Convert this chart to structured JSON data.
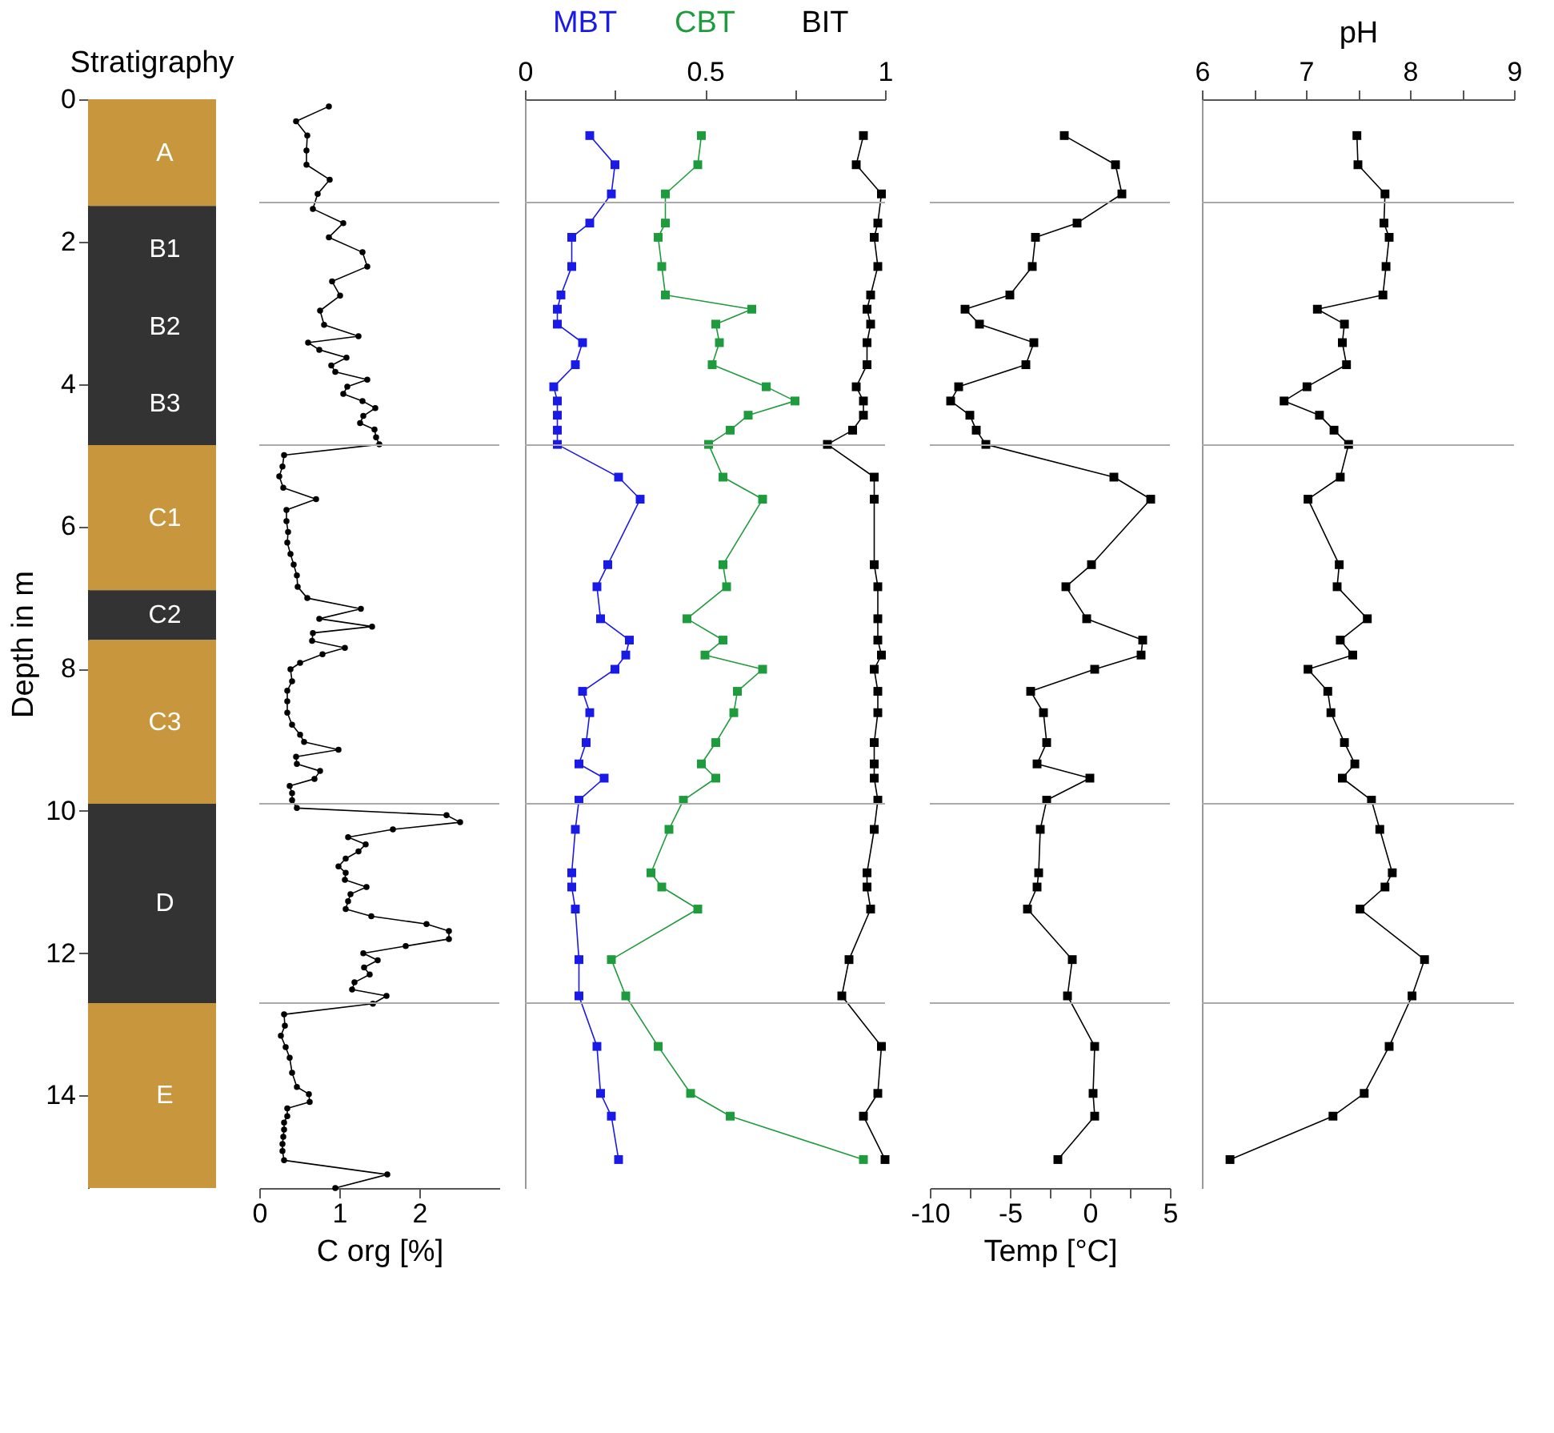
{
  "chart_data": [
    {
      "type": "bar",
      "stacked": true,
      "title": "Stratigraphy",
      "ylabel": "Depth in m",
      "categories": [
        null
      ],
      "ylim": [
        15.3,
        0
      ],
      "yticks": [
        0,
        2,
        4,
        6,
        8,
        10,
        12,
        14
      ],
      "tick_labels": "y",
      "data_labels": false,
      "series": [
        {
          "name": "A",
          "color": "#c8963c",
          "values": [
            1.5
          ]
        },
        {
          "name": "B1",
          "color": "#333333",
          "values": [
            1.2
          ]
        },
        {
          "name": "B2",
          "color": "#333333",
          "values": [
            1.0
          ]
        },
        {
          "name": "B3",
          "color": "#333333",
          "values": [
            1.16
          ]
        },
        {
          "name": "C1",
          "color": "#c8963c",
          "values": [
            2.04
          ]
        },
        {
          "name": "C2",
          "color": "#333333",
          "values": [
            0.7
          ]
        },
        {
          "name": "C3",
          "color": "#c8963c",
          "values": [
            2.3
          ]
        },
        {
          "name": "D",
          "color": "#333333",
          "values": [
            2.8
          ]
        },
        {
          "name": "E",
          "color": "#c8963c",
          "values": [
            2.6
          ]
        }
      ]
    },
    {
      "type": "line",
      "xlabel": "C org [%]",
      "xlim": [
        0,
        3
      ],
      "xticks": [
        0,
        1,
        2
      ],
      "ylim": [
        15.3,
        0
      ],
      "tick_labels": "x",
      "marker": "circle",
      "ref_lines": [
        {
          "axis": "y",
          "value": 1.45,
          "color": "#aaaaaa"
        },
        {
          "axis": "y",
          "value": 4.86,
          "color": "#aaaaaa"
        },
        {
          "axis": "y",
          "value": 9.9,
          "color": "#aaaaaa"
        },
        {
          "axis": "y",
          "value": 12.7,
          "color": "#aaaaaa"
        }
      ],
      "series": [
        {
          "color": "#000000",
          "x": [
            0.87,
            0.46,
            0.6,
            0.59,
            0.59,
            0.88,
            0.73,
            0.67,
            1.05,
            0.87,
            1.29,
            1.35,
            0.91,
            1.01,
            0.76,
            0.81,
            1.24,
            0.61,
            0.75,
            1.09,
            0.9,
            0.95,
            1.35,
            1.1,
            1.05,
            1.29,
            1.45,
            1.3,
            1.26,
            1.44,
            1.46,
            1.5,
            0.31,
            0.29,
            0.25,
            0.3,
            0.71,
            0.34,
            0.34,
            0.36,
            0.35,
            0.39,
            0.43,
            0.47,
            0.48,
            0.6,
            1.27,
            0.75,
            1.41,
            0.67,
            0.66,
            1.07,
            0.79,
            0.51,
            0.39,
            0.41,
            0.35,
            0.35,
            0.35,
            0.41,
            0.51,
            0.56,
            0.99,
            0.46,
            0.47,
            0.76,
            0.69,
            0.38,
            0.41,
            0.41,
            0.47,
            2.34,
            2.51,
            1.67,
            1.11,
            1.33,
            1.24,
            1.08,
            0.99,
            1.08,
            1.07,
            1.34,
            1.14,
            1.11,
            1.08,
            1.4,
            2.09,
            2.37,
            2.37,
            1.83,
            1.3,
            1.48,
            1.31,
            1.38,
            1.19,
            1.16,
            1.59,
            1.42,
            0.31,
            0.32,
            0.27,
            0.33,
            0.38,
            0.41,
            0.47,
            0.62,
            0.63,
            0.35,
            0.35,
            0.31,
            0.31,
            0.3,
            0.29,
            0.29,
            0.31,
            1.6,
            0.95
          ],
          "values": [
            0.1,
            0.31,
            0.51,
            0.72,
            0.92,
            1.13,
            1.33,
            1.54,
            1.74,
            1.94,
            2.15,
            2.35,
            2.56,
            2.76,
            2.97,
            3.17,
            3.33,
            3.42,
            3.52,
            3.63,
            3.74,
            3.83,
            3.94,
            4.04,
            4.14,
            4.24,
            4.34,
            4.45,
            4.55,
            4.64,
            4.75,
            4.85,
            5.0,
            5.16,
            5.3,
            5.46,
            5.62,
            5.77,
            5.93,
            6.08,
            6.23,
            6.39,
            6.54,
            6.69,
            6.85,
            7.01,
            7.16,
            7.3,
            7.41,
            7.5,
            7.61,
            7.71,
            7.8,
            7.92,
            8.01,
            8.18,
            8.31,
            8.46,
            8.62,
            8.79,
            8.93,
            9.03,
            9.14,
            9.24,
            9.34,
            9.44,
            9.55,
            9.65,
            9.75,
            9.85,
            9.96,
            10.06,
            10.16,
            10.26,
            10.37,
            10.47,
            10.57,
            10.67,
            10.78,
            10.87,
            10.97,
            11.07,
            11.17,
            11.27,
            11.38,
            11.48,
            11.59,
            11.69,
            11.8,
            11.9,
            12.0,
            12.1,
            12.2,
            12.3,
            12.41,
            12.51,
            12.6,
            12.71,
            12.86,
            13.02,
            13.16,
            13.32,
            13.47,
            13.68,
            13.88,
            13.98,
            14.09,
            14.18,
            14.29,
            14.38,
            14.48,
            14.58,
            14.68,
            14.78,
            14.91,
            15.11,
            15.3
          ]
        }
      ]
    },
    {
      "type": "line",
      "xlim": [
        0,
        1
      ],
      "xticks": [
        0,
        {
          "value": 0.25,
          "label": null
        },
        0.5,
        {
          "value": 0.75,
          "label": null
        },
        1
      ],
      "ylim": [
        15.3,
        0
      ],
      "tick_labels": "x",
      "marker": "square",
      "ref_lines": [
        {
          "axis": "y",
          "value": 1.45,
          "color": "#aaaaaa"
        },
        {
          "axis": "y",
          "value": 4.86,
          "color": "#aaaaaa"
        },
        {
          "axis": "y",
          "value": 9.9,
          "color": "#aaaaaa"
        },
        {
          "axis": "y",
          "value": 12.7,
          "color": "#aaaaaa"
        }
      ],
      "series": [
        {
          "name": "MBT",
          "color": "#1a1ae6",
          "x": [
            0.18,
            0.25,
            0.24,
            0.18,
            0.13,
            0.13,
            0.1,
            0.09,
            0.09,
            0.16,
            0.14,
            0.08,
            0.09,
            0.09,
            0.09,
            0.09,
            0.26,
            0.32,
            0.23,
            0.2,
            0.21,
            0.29,
            0.28,
            0.25,
            0.16,
            0.18,
            0.17,
            0.15,
            0.22,
            0.15,
            0.14,
            0.13,
            0.13,
            0.14,
            0.15,
            0.15,
            0.2,
            0.21,
            0.24,
            0.26
          ],
          "values": [
            0.51,
            0.92,
            1.33,
            1.74,
            1.94,
            2.35,
            2.75,
            2.95,
            3.16,
            3.42,
            3.73,
            4.04,
            4.24,
            4.44,
            4.65,
            4.85,
            5.31,
            5.62,
            6.54,
            6.85,
            7.3,
            7.6,
            7.81,
            8.01,
            8.32,
            8.62,
            9.04,
            9.34,
            9.54,
            9.85,
            10.26,
            10.87,
            11.07,
            11.38,
            12.09,
            12.6,
            13.31,
            13.97,
            14.29,
            14.9
          ]
        },
        {
          "name": "CBT",
          "color": "#1e9b3c",
          "x": [
            0.49,
            0.48,
            0.39,
            0.39,
            0.37,
            0.38,
            0.39,
            0.63,
            0.53,
            0.54,
            0.52,
            0.67,
            0.75,
            0.62,
            0.57,
            0.51,
            0.55,
            0.66,
            0.55,
            0.56,
            0.45,
            0.55,
            0.5,
            0.66,
            0.59,
            0.58,
            0.53,
            0.49,
            0.53,
            0.44,
            0.4,
            0.35,
            0.38,
            0.48,
            0.24,
            0.28,
            0.37,
            0.46,
            0.57,
            0.94
          ],
          "values": [
            0.51,
            0.92,
            1.33,
            1.74,
            1.94,
            2.35,
            2.75,
            2.95,
            3.16,
            3.42,
            3.73,
            4.04,
            4.24,
            4.44,
            4.65,
            4.85,
            5.31,
            5.62,
            6.54,
            6.85,
            7.3,
            7.6,
            7.81,
            8.01,
            8.32,
            8.62,
            9.04,
            9.34,
            9.54,
            9.85,
            10.26,
            10.87,
            11.07,
            11.38,
            12.09,
            12.6,
            13.31,
            13.97,
            14.29,
            14.9
          ]
        },
        {
          "name": "BIT",
          "color": "#000000",
          "x": [
            0.94,
            0.92,
            0.99,
            0.98,
            0.97,
            0.98,
            0.96,
            0.95,
            0.96,
            0.95,
            0.95,
            0.92,
            0.94,
            0.94,
            0.91,
            0.84,
            0.97,
            0.97,
            0.97,
            0.98,
            0.98,
            0.98,
            0.99,
            0.97,
            0.98,
            0.98,
            0.97,
            0.97,
            0.97,
            0.98,
            0.97,
            0.95,
            0.95,
            0.96,
            0.9,
            0.88,
            0.99,
            0.98,
            0.94,
            1.0
          ],
          "values": [
            0.51,
            0.92,
            1.33,
            1.74,
            1.94,
            2.35,
            2.75,
            2.95,
            3.16,
            3.42,
            3.73,
            4.04,
            4.24,
            4.44,
            4.65,
            4.85,
            5.31,
            5.62,
            6.54,
            6.85,
            7.3,
            7.6,
            7.81,
            8.01,
            8.32,
            8.62,
            9.04,
            9.34,
            9.54,
            9.85,
            10.26,
            10.87,
            11.07,
            11.38,
            12.09,
            12.6,
            13.31,
            13.97,
            14.29,
            14.9
          ]
        }
      ]
    },
    {
      "type": "line",
      "xlabel": "Temp [°C]",
      "xlim": [
        -10,
        5
      ],
      "xticks": [
        -10,
        {
          "value": -7.5,
          "label": null
        },
        -5,
        {
          "value": -2.5,
          "label": null
        },
        0,
        {
          "value": 2.5,
          "label": null
        },
        5
      ],
      "ylim": [
        15.3,
        0
      ],
      "tick_labels": "x",
      "marker": "square",
      "ref_lines": [
        {
          "axis": "y",
          "value": 1.45,
          "color": "#aaaaaa"
        },
        {
          "axis": "y",
          "value": 4.86,
          "color": "#aaaaaa"
        },
        {
          "axis": "y",
          "value": 9.9,
          "color": "#aaaaaa"
        },
        {
          "axis": "y",
          "value": 12.7,
          "color": "#aaaaaa"
        }
      ],
      "series": [
        {
          "color": "#000000",
          "x": [
            -1.6,
            1.6,
            2.0,
            -0.8,
            -3.4,
            -3.6,
            -5.0,
            -7.8,
            -6.9,
            -3.5,
            -4.0,
            -8.2,
            -8.7,
            -7.5,
            -7.1,
            -6.5,
            1.5,
            3.8,
            0.1,
            -1.5,
            -0.2,
            3.3,
            3.2,
            0.3,
            -3.7,
            -2.9,
            -2.7,
            -3.3,
            0.0,
            -2.7,
            -3.1,
            -3.2,
            -3.3,
            -3.9,
            -1.1,
            -1.4,
            0.3,
            0.2,
            0.3,
            -2.0
          ],
          "values": [
            0.51,
            0.92,
            1.33,
            1.74,
            1.94,
            2.35,
            2.75,
            2.95,
            3.16,
            3.42,
            3.73,
            4.04,
            4.24,
            4.44,
            4.65,
            4.85,
            5.31,
            5.62,
            6.54,
            6.85,
            7.3,
            7.6,
            7.81,
            8.01,
            8.32,
            8.62,
            9.04,
            9.34,
            9.54,
            9.85,
            10.26,
            10.87,
            11.07,
            11.38,
            12.09,
            12.6,
            13.31,
            13.97,
            14.29,
            14.9
          ]
        }
      ]
    },
    {
      "type": "line",
      "xlabel": "pH",
      "xlim": [
        6,
        9
      ],
      "xticks": [
        6,
        {
          "value": 6.5,
          "label": null
        },
        7,
        {
          "value": 7.5,
          "label": null
        },
        8,
        {
          "value": 8.5,
          "label": null
        },
        9
      ],
      "ylim": [
        15.3,
        0
      ],
      "tick_labels": "x",
      "marker": "square",
      "ref_lines": [
        {
          "axis": "y",
          "value": 1.45,
          "color": "#aaaaaa"
        },
        {
          "axis": "y",
          "value": 4.86,
          "color": "#aaaaaa"
        },
        {
          "axis": "y",
          "value": 9.9,
          "color": "#aaaaaa"
        },
        {
          "axis": "y",
          "value": 12.7,
          "color": "#aaaaaa"
        }
      ],
      "series": [
        {
          "color": "#000000",
          "x": [
            7.49,
            7.5,
            7.76,
            7.75,
            7.8,
            7.77,
            7.74,
            7.11,
            7.37,
            7.35,
            7.39,
            7.01,
            6.79,
            7.13,
            7.27,
            7.41,
            7.33,
            7.02,
            7.32,
            7.3,
            7.59,
            7.33,
            7.45,
            7.02,
            7.21,
            7.24,
            7.37,
            7.47,
            7.35,
            7.63,
            7.71,
            7.83,
            7.76,
            7.52,
            8.14,
            8.02,
            7.8,
            7.56,
            7.26,
            6.27
          ],
          "values": [
            0.51,
            0.92,
            1.33,
            1.74,
            1.94,
            2.35,
            2.75,
            2.95,
            3.16,
            3.42,
            3.73,
            4.04,
            4.24,
            4.44,
            4.65,
            4.85,
            5.31,
            5.62,
            6.54,
            6.85,
            7.3,
            7.6,
            7.81,
            8.01,
            8.32,
            8.62,
            9.04,
            9.34,
            9.54,
            9.85,
            10.26,
            10.87,
            11.07,
            11.38,
            12.09,
            12.6,
            13.31,
            13.97,
            14.29,
            14.9
          ]
        }
      ]
    }
  ]
}
